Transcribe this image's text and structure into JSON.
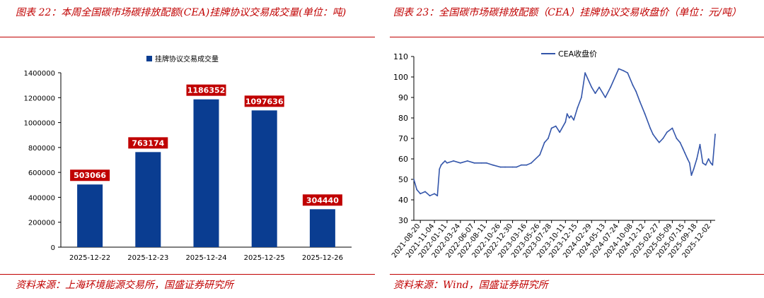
{
  "left_figure": {
    "title": "图表 22：本周全国碳市场碳排放配额(CEA)挂牌协议交易成交量(单位：吨)",
    "source": "资料来源：上海环境能源交易所，国盛证券研究所",
    "colors": {
      "bar": "#0a3d91",
      "label_bg": "#c00000",
      "label_text": "#ffffff",
      "accent": "#c00000"
    }
  },
  "right_figure": {
    "title": "图表 23：全国碳市场碳排放配额（CEA）挂牌协议交易收盘价（单位：元/吨）",
    "source": "资料来源：Wind，国盛证券研究所",
    "colors": {
      "line": "#3355aa",
      "accent": "#c00000"
    }
  },
  "chart_data": [
    {
      "type": "bar",
      "categories": [
        "2025-12-22",
        "2025-12-23",
        "2025-12-24",
        "2025-12-25",
        "2025-12-26"
      ],
      "series": [
        {
          "name": "挂牌协议交易成交量",
          "values": [
            503066,
            763174,
            1186352,
            1097636,
            304440
          ]
        }
      ],
      "data_labels": [
        "503066",
        "763174",
        "1186352",
        "1097636",
        "304440"
      ],
      "ylim": [
        0,
        1400000
      ],
      "yticks": [
        0,
        200000,
        400000,
        600000,
        800000,
        1000000,
        1200000,
        1400000
      ],
      "ytick_labels": [
        "0",
        "200000",
        "400000",
        "600000",
        "800000",
        "1000000",
        "1200000",
        "1400000"
      ],
      "legend_position": "top-center",
      "grid": false
    },
    {
      "type": "line",
      "series": [
        {
          "name": "CEA收盘价",
          "x": [
            "2021-07-16",
            "2021-08-01",
            "2021-08-20",
            "2021-09-15",
            "2021-10-10",
            "2021-11-04",
            "2021-11-20",
            "2021-12-01",
            "2021-12-10",
            "2021-12-20",
            "2021-12-31",
            "2022-01-11",
            "2022-02-15",
            "2022-03-24",
            "2022-05-01",
            "2022-06-07",
            "2022-07-15",
            "2022-08-11",
            "2022-09-15",
            "2022-10-26",
            "2022-11-20",
            "2022-12-30",
            "2023-01-20",
            "2023-02-15",
            "2023-03-16",
            "2023-04-10",
            "2023-05-26",
            "2023-06-20",
            "2023-07-10",
            "2023-07-28",
            "2023-08-20",
            "2023-09-10",
            "2023-10-11",
            "2023-10-20",
            "2023-11-01",
            "2023-11-10",
            "2023-11-25",
            "2023-12-15",
            "2024-01-05",
            "2024-01-25",
            "2024-02-29",
            "2024-03-20",
            "2024-04-10",
            "2024-05-13",
            "2024-06-10",
            "2024-07-24",
            "2024-08-20",
            "2024-09-10",
            "2024-10-08",
            "2024-10-25",
            "2024-11-15",
            "2024-12-12",
            "2025-01-10",
            "2025-01-25",
            "2025-02-10",
            "2025-02-27",
            "2025-03-20",
            "2025-04-10",
            "2025-05-09",
            "2025-06-01",
            "2025-06-20",
            "2025-07-05",
            "2025-07-15",
            "2025-07-30",
            "2025-08-10",
            "2025-08-20",
            "2025-09-01",
            "2025-09-18",
            "2025-10-05",
            "2025-10-20",
            "2025-11-05",
            "2025-11-20",
            "2025-12-02",
            "2025-12-12",
            "2025-12-26"
          ],
          "y": [
            50,
            45,
            43,
            44,
            42,
            43,
            42,
            55,
            57,
            58,
            59,
            58,
            59,
            58,
            59,
            58,
            58,
            58,
            57,
            56,
            56,
            56,
            56,
            57,
            57,
            58,
            62,
            68,
            70,
            75,
            76,
            73,
            78,
            82,
            80,
            81,
            79,
            85,
            90,
            102,
            95,
            92,
            95,
            90,
            95,
            104,
            103,
            102,
            96,
            93,
            88,
            82,
            75,
            72,
            70,
            68,
            70,
            73,
            75,
            70,
            68,
            65,
            63,
            60,
            58,
            52,
            55,
            60,
            67,
            58,
            57,
            60,
            58,
            57,
            72
          ]
        }
      ],
      "ylim": [
        30,
        110
      ],
      "yticks": [
        30,
        40,
        50,
        60,
        70,
        80,
        90,
        100,
        110
      ],
      "ytick_labels": [
        "30",
        "40",
        "50",
        "60",
        "70",
        "80",
        "90",
        "100",
        "110"
      ],
      "xticks": [
        "2021-08-20",
        "2021-11-04",
        "2022-01-11",
        "2022-03-24",
        "2022-06-07",
        "2022-08-11",
        "2022-10-26",
        "2022-12-30",
        "2023-03-16",
        "2023-05-26",
        "2023-07-28",
        "2023-10-11",
        "2023-12-15",
        "2024-02-29",
        "2024-05-13",
        "2024-07-24",
        "2024-10-08",
        "2024-12-12",
        "2025-02-27",
        "2025-05-09",
        "2025-07-15",
        "2025-09-18",
        "2025-12-02"
      ],
      "xlim": [
        "2021-07-16",
        "2025-12-26"
      ],
      "legend_position": "top-left",
      "grid": false
    }
  ]
}
